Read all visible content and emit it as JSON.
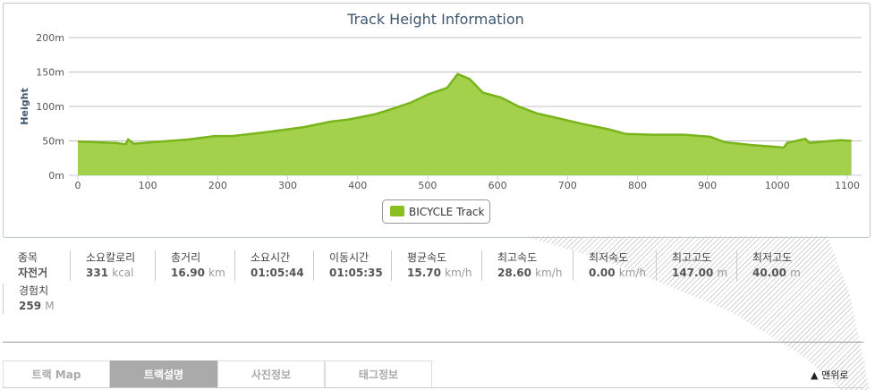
{
  "chart_data": {
    "type": "area",
    "title": "Track Height Information",
    "ylabel": "Height",
    "xlabel": "",
    "xlim": [
      0,
      1100
    ],
    "ylim": [
      0,
      200
    ],
    "x_ticks": [
      "0",
      "100",
      "200",
      "300",
      "400",
      "500",
      "600",
      "700",
      "800",
      "900",
      "1000",
      "1100"
    ],
    "y_ticks": [
      "0m",
      "50m",
      "100m",
      "150m",
      "200m"
    ],
    "grid": true,
    "legend_position": "bottom",
    "series": [
      {
        "name": "BICYCLE Track",
        "color": "#8bbf1f",
        "x": [
          0,
          55,
          68,
          72,
          80,
          106,
          157,
          196,
          221,
          272,
          323,
          362,
          387,
          426,
          451,
          477,
          502,
          528,
          543,
          560,
          579,
          605,
          630,
          656,
          682,
          720,
          758,
          784,
          822,
          867,
          904,
          925,
          963,
          1001,
          1009,
          1014,
          1040,
          1046,
          1065,
          1091,
          1106
        ],
        "y": [
          49,
          47,
          45,
          52,
          46,
          48,
          52,
          57,
          57,
          63,
          70,
          78,
          81,
          89,
          97,
          106,
          118,
          127,
          147,
          140,
          120,
          113,
          100,
          90,
          84,
          75,
          67,
          60,
          59,
          59,
          56,
          48,
          44,
          41,
          40,
          47,
          53,
          47,
          49,
          51,
          50
        ]
      }
    ]
  },
  "stats": [
    {
      "label": "종목",
      "value": "자전거",
      "unit": ""
    },
    {
      "label": "소요칼로리",
      "value": "331",
      "unit": "kcal"
    },
    {
      "label": "총거리",
      "value": "16.90",
      "unit": "km"
    },
    {
      "label": "소요시간",
      "value": "01:05:44",
      "unit": ""
    },
    {
      "label": "이동시간",
      "value": "01:05:35",
      "unit": ""
    },
    {
      "label": "평균속도",
      "value": "15.70",
      "unit": "km/h"
    },
    {
      "label": "최고속도",
      "value": "28.60",
      "unit": "km/h"
    },
    {
      "label": "최저속도",
      "value": "0.00",
      "unit": "km/h"
    },
    {
      "label": "최고고도",
      "value": "147.00",
      "unit": "m"
    },
    {
      "label": "최저고도",
      "value": "40.00",
      "unit": "m"
    },
    {
      "label": "경험치",
      "value": "259",
      "unit": "M"
    }
  ],
  "tabs": [
    {
      "label": "트랙 Map"
    },
    {
      "label": "트랙설명"
    },
    {
      "label": "사진정보"
    },
    {
      "label": "태그정보"
    }
  ],
  "active_tab": "트랙설명",
  "back_to_top": "▲ 맨위로"
}
